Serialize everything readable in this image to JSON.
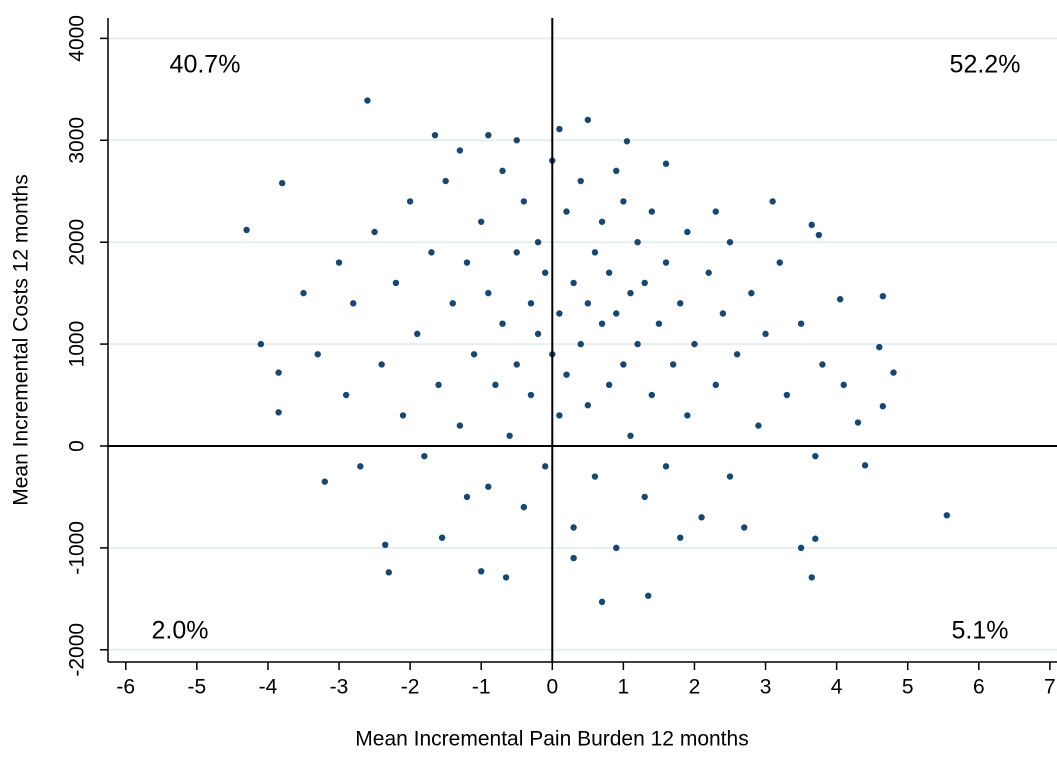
{
  "chart_data": {
    "type": "scatter",
    "x_label": "Mean Incremental Pain Burden 12 months",
    "y_label": "Mean Incremental Costs 12 months",
    "annotations": [
      "40.7%",
      "52.2%",
      "2.0%",
      "5.1%"
    ],
    "reference_lines": {
      "x": 0,
      "y": 0
    },
    "color": "#1a476f",
    "grid": true,
    "xlim": [
      -6.25,
      7.1
    ],
    "ylim": [
      -2120,
      4200
    ],
    "xticks": [
      -6,
      -5,
      -4,
      -3,
      -2,
      -1,
      0,
      1,
      2,
      3,
      4,
      5,
      6,
      7
    ],
    "yticks": [
      -2000,
      -1000,
      0,
      1000,
      2000,
      3000,
      4000
    ],
    "x": [
      -4.3,
      -2.6,
      -4.1,
      -3.85,
      -3.85,
      -3.8,
      -3.2,
      -2.3,
      -2.35,
      -0.65,
      0.7,
      1.35,
      3.65,
      5.55,
      4.8,
      4.65,
      4.65,
      4.6,
      4.3,
      4.4,
      3.7,
      3.5,
      0.5,
      0.1,
      1.05,
      1.6,
      -0.9,
      -1.65,
      -1.55,
      -1.0,
      3.1,
      3.65,
      3.75,
      4.05,
      -3,
      -2.8,
      -2.5,
      -2.4,
      -2.2,
      -2.1,
      -2,
      -1.9,
      -1.8,
      -1.7,
      -1.6,
      -1.5,
      -1.4,
      -1.3,
      -1.2,
      -1.1,
      -1,
      -0.9,
      -0.9,
      -0.8,
      -0.7,
      -0.7,
      -0.6,
      -0.5,
      -0.5,
      -0.4,
      -0.4,
      -0.3,
      -0.3,
      -0.2,
      -0.2,
      -0.1,
      -0.1,
      0,
      0,
      0.1,
      0.1,
      0.2,
      0.2,
      0.3,
      0.3,
      0.4,
      0.4,
      0.5,
      0.5,
      0.6,
      0.6,
      0.7,
      0.7,
      0.8,
      0.8,
      0.9,
      0.9,
      1,
      1,
      1.1,
      1.1,
      1.2,
      1.2,
      1.3,
      1.3,
      1.4,
      1.4,
      1.5,
      1.6,
      1.6,
      1.7,
      1.8,
      1.9,
      1.9,
      2,
      2.1,
      2.2,
      2.3,
      2.4,
      2.5,
      2.5,
      2.6,
      2.8,
      2.9,
      3,
      3.2,
      3.3,
      3.5,
      3.7,
      3.8,
      4.1,
      -3.3,
      -3.5,
      -2.7,
      -2.9,
      -1.2,
      0.3,
      1.8,
      2.7,
      -0.5,
      -1.3,
      0.9,
      2.3
    ],
    "values": [
      2120,
      3390,
      1000,
      720,
      330,
      2580,
      -350,
      -1240,
      -970,
      -1290,
      -1530,
      -1470,
      -1290,
      -680,
      720,
      390,
      1470,
      970,
      230,
      -190,
      -910,
      -1000,
      3200,
      3110,
      2990,
      2770,
      3050,
      3050,
      -900,
      -1230,
      2400,
      2170,
      2070,
      1440,
      1800,
      1400,
      2100,
      800,
      1600,
      300,
      2400,
      1100,
      -100,
      1900,
      600,
      2600,
      1400,
      200,
      1800,
      900,
      2200,
      -400,
      1500,
      600,
      2700,
      1200,
      100,
      1900,
      800,
      2400,
      -600,
      1400,
      500,
      2000,
      1100,
      -200,
      1700,
      2800,
      900,
      1300,
      300,
      2300,
      700,
      1600,
      -800,
      1000,
      2600,
      1400,
      400,
      1900,
      -300,
      1200,
      2200,
      600,
      1700,
      -1000,
      1300,
      2400,
      800,
      1500,
      100,
      2000,
      1000,
      -500,
      1600,
      500,
      2300,
      1200,
      -200,
      1800,
      800,
      1400,
      2100,
      300,
      1000,
      -700,
      1700,
      600,
      1300,
      2000,
      -300,
      900,
      1500,
      200,
      1100,
      1800,
      500,
      1200,
      -100,
      800,
      600,
      900,
      1500,
      -200,
      500,
      -500,
      -1100,
      -900,
      -800,
      3000,
      2900,
      2700,
      2300
    ]
  }
}
